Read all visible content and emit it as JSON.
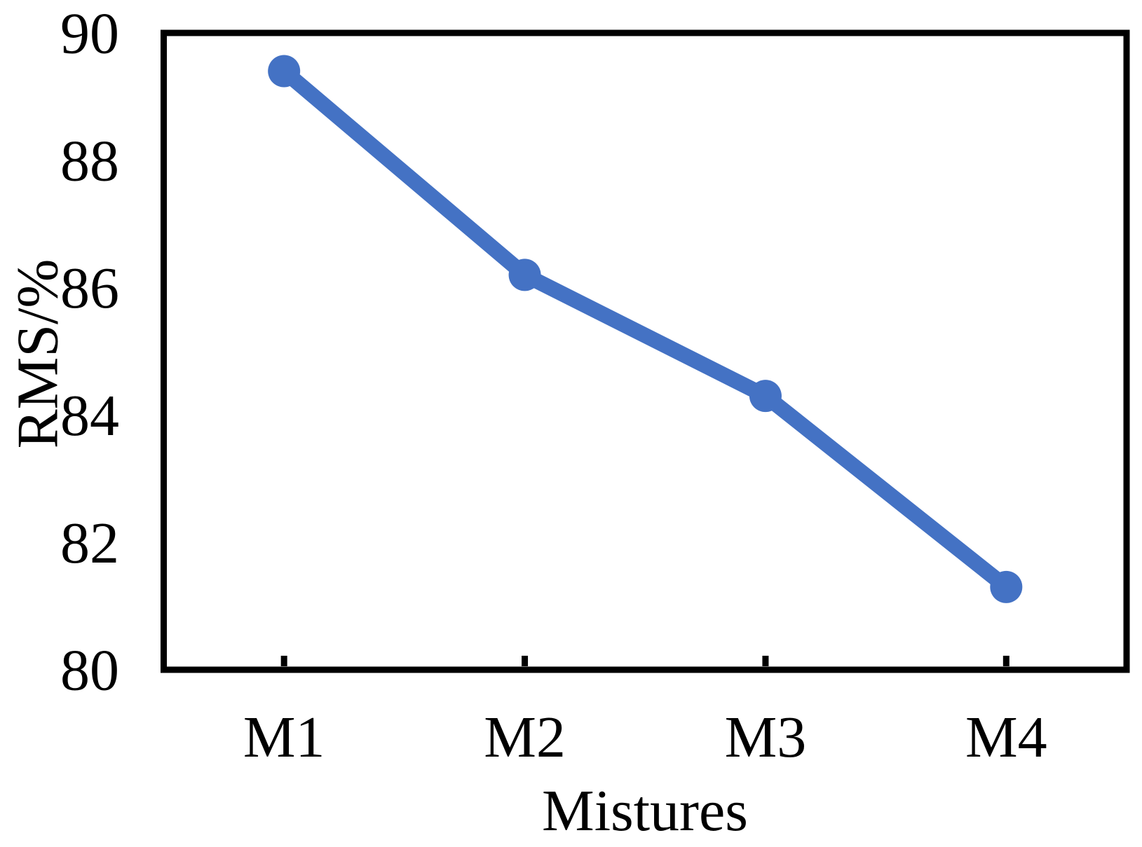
{
  "chart_data": {
    "type": "line",
    "categories": [
      "M1",
      "M2",
      "M3",
      "M4"
    ],
    "values": [
      89.4,
      86.2,
      84.3,
      81.3
    ],
    "series_name": "RMS",
    "title": "",
    "xlabel": "Mistures",
    "ylabel": "RMS/%",
    "ylim": [
      80,
      90
    ],
    "yticks": [
      "80",
      "82",
      "84",
      "86",
      "88",
      "90"
    ],
    "x_tick_marks": "inside",
    "y_tick_marks": "none",
    "grid": false,
    "legend": "none",
    "line_color": "#4472C4",
    "marker": "circle",
    "axis_color": "#000000",
    "background_color": "#FFFFFF"
  }
}
